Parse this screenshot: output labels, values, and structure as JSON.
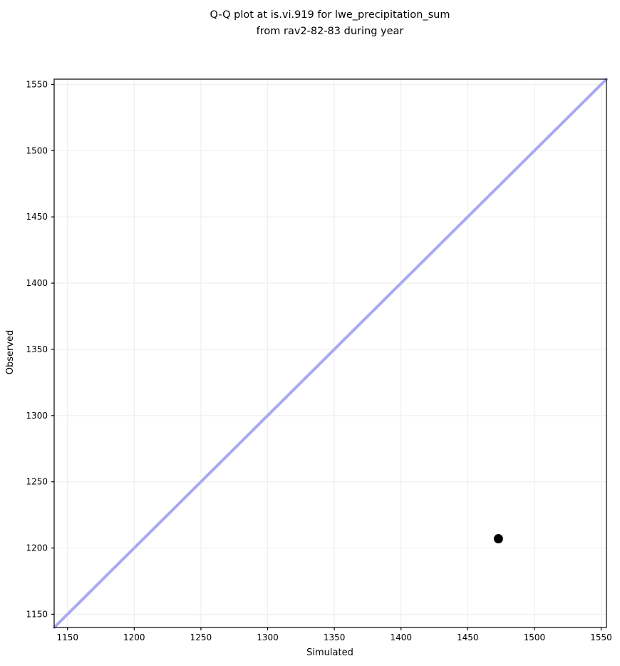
{
  "figure": {
    "title_line1": "Q-Q plot at is.vi.919 for lwe_precipitation_sum",
    "title_line2": "from rav2-82-83 during year"
  },
  "axes": {
    "xlabel": "Simulated",
    "ylabel": "Observed"
  },
  "colors": {
    "background": "#ffffff",
    "grid": "#efefef",
    "spine": "#000000",
    "tick": "#000000",
    "identity_line": "#a9a9f2",
    "marker": "#000000"
  },
  "chart_data": {
    "type": "scatter",
    "title": "Q-Q plot at is.vi.919 for lwe_precipitation_sum\nfrom rav2-82-83 during year",
    "xlabel": "Simulated",
    "ylabel": "Observed",
    "xlim": [
      1140,
      1554
    ],
    "ylim": [
      1140,
      1554
    ],
    "x_ticks": [
      1150,
      1200,
      1250,
      1300,
      1350,
      1400,
      1450,
      1500,
      1550
    ],
    "y_ticks": [
      1150,
      1200,
      1250,
      1300,
      1350,
      1400,
      1450,
      1500,
      1550
    ],
    "grid": true,
    "legend": false,
    "series": [
      {
        "name": "identity_line",
        "type": "line",
        "x": [
          1140,
          1554
        ],
        "y": [
          1140,
          1554
        ],
        "color": "#a9a9f2",
        "linewidth": 4
      },
      {
        "name": "quantile_points",
        "type": "scatter",
        "points": [
          {
            "x": 1473,
            "y": 1207
          }
        ],
        "color": "#000000",
        "marker_diameter": 13
      }
    ]
  }
}
